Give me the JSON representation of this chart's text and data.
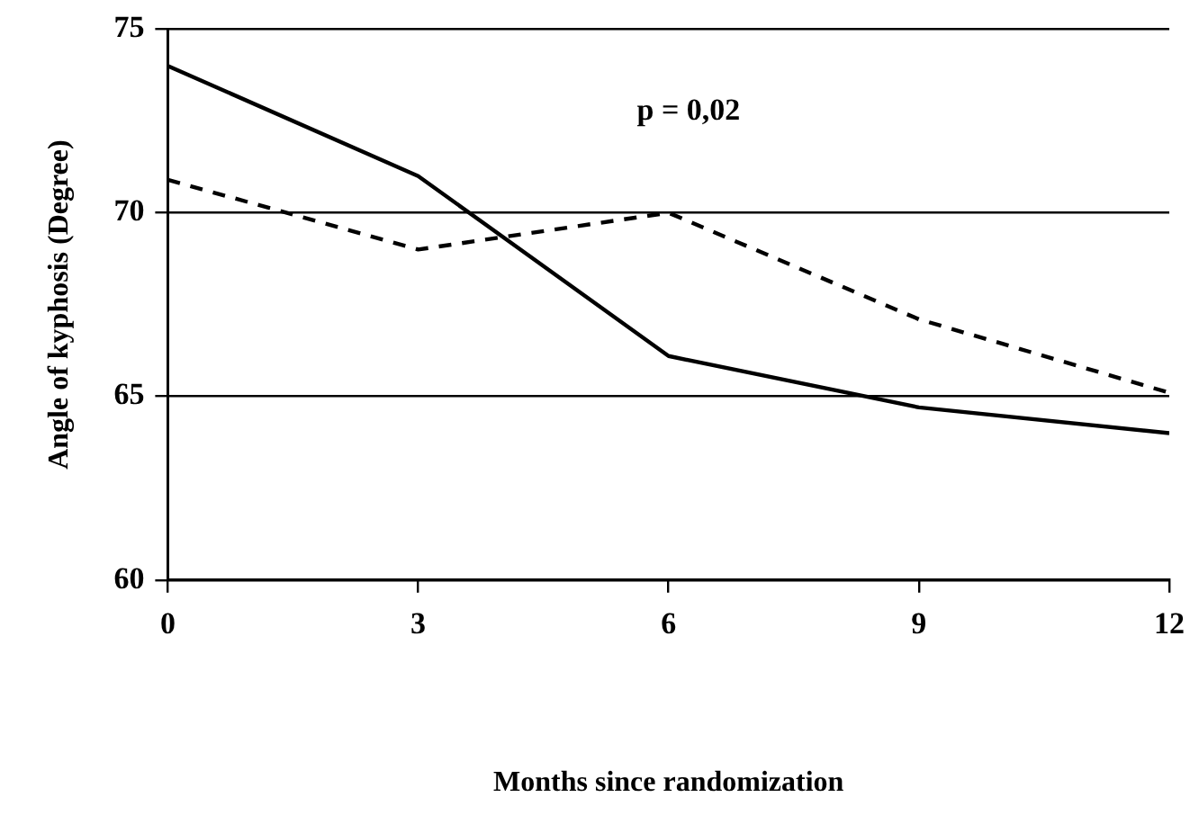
{
  "chart_data": {
    "type": "line",
    "xlabel": "Months since randomization",
    "ylabel": "Angle of kyphosis (Degree)",
    "x": [
      0,
      3,
      6,
      9,
      12
    ],
    "series": [
      {
        "color": "#000000",
        "line_style": "solid",
        "values": [
          74,
          71,
          66.1,
          64.7,
          64
        ]
      },
      {
        "color": "#000000",
        "line_style": "dashed",
        "values": [
          70.9,
          69,
          70,
          67.1,
          65.1
        ]
      }
    ],
    "xlim": [
      0,
      12
    ],
    "xticks": [
      0,
      3,
      6,
      9,
      12
    ],
    "ylim": [
      60,
      75
    ],
    "yticks": [
      60,
      65,
      70,
      75
    ],
    "grid": "y",
    "legend": false,
    "marker": "none",
    "annotations": [
      "p = 0,02"
    ]
  }
}
